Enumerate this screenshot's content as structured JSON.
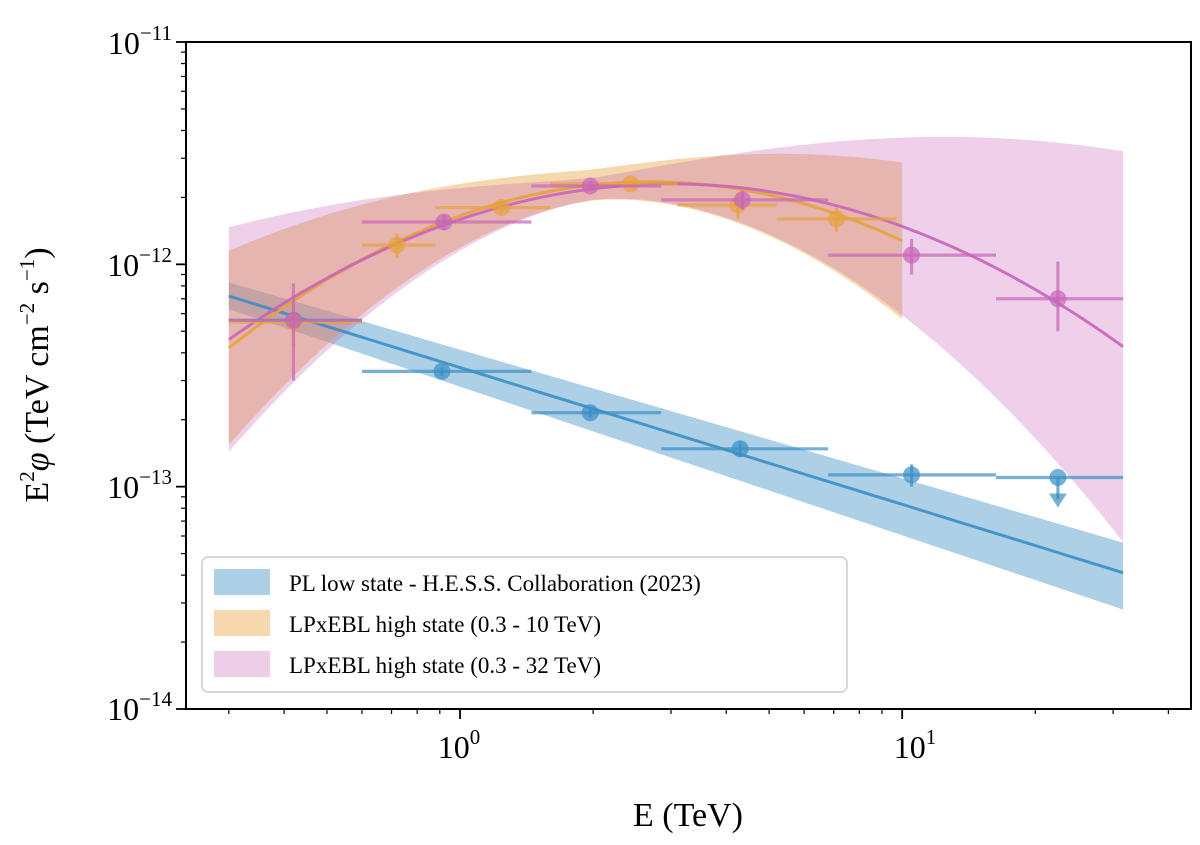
{
  "chart_data": {
    "type": "scatter",
    "xscale": "log",
    "yscale": "log",
    "xlim": [
      0.24,
      45
    ],
    "ylim": [
      1e-14,
      1e-11
    ],
    "xlabel": "E (TeV)",
    "ylabel": {
      "base": "E",
      "sup": "2",
      "phi": "φ",
      "units_open": " (TeV cm",
      "units_sup1": "−2",
      "units_mid": " s",
      "units_sup2": "−1",
      "units_close": ")"
    },
    "x_tick_labels": [
      {
        "value": 1,
        "base": "10",
        "exp": "0"
      },
      {
        "value": 10,
        "base": "10",
        "exp": "1"
      }
    ],
    "y_tick_labels": [
      {
        "value": 1e-14,
        "base": "10",
        "exp": "−14"
      },
      {
        "value": 1e-13,
        "base": "10",
        "exp": "−13"
      },
      {
        "value": 1e-12,
        "base": "10",
        "exp": "−12"
      },
      {
        "value": 1e-11,
        "base": "10",
        "exp": "−11"
      }
    ],
    "legend_position": "lower-left",
    "colors": {
      "pl_low": "#3b8ec4",
      "lp_10": "#e6a23c",
      "lp_32": "#c865b9"
    },
    "series": [
      {
        "name": "PL low state - H.E.S.S. Collaboration (2023)",
        "key": "pl_low",
        "model": {
          "type": "powerlaw",
          "x": [
            0.3,
            31.6
          ],
          "y": [
            7.2e-13,
            4.1e-14
          ],
          "band_low": [
            6.3e-13,
            2.8e-14
          ],
          "band_high": [
            8.3e-13,
            5.6e-14
          ],
          "pivot": 1.5,
          "pivot_frac": 0.06
        },
        "points": [
          {
            "x": 0.42,
            "y": 5.6e-13,
            "xlo": 0.3,
            "xhi": 0.6,
            "ylo": 5.4e-13,
            "yhi": 5.8e-13
          },
          {
            "x": 0.91,
            "y": 3.3e-13,
            "xlo": 0.6,
            "xhi": 1.45,
            "ylo": 3.15e-13,
            "yhi": 3.45e-13
          },
          {
            "x": 1.97,
            "y": 2.15e-13,
            "xlo": 1.45,
            "xhi": 2.85,
            "ylo": 2.05e-13,
            "yhi": 2.25e-13
          },
          {
            "x": 4.3,
            "y": 1.48e-13,
            "xlo": 2.85,
            "xhi": 6.8,
            "ylo": 1.36e-13,
            "yhi": 1.6e-13
          },
          {
            "x": 10.5,
            "y": 1.13e-13,
            "xlo": 6.8,
            "xhi": 16.3,
            "ylo": 1e-13,
            "yhi": 1.26e-13
          },
          {
            "x": 22.5,
            "y": 1.1e-13,
            "xlo": 16.3,
            "xhi": 31.6,
            "upper_limit": true
          }
        ]
      },
      {
        "name": "LPxEBL high state (0.3 - 10 TeV)",
        "key": "lp_10",
        "model": {
          "type": "logparabola",
          "x_range": [
            0.3,
            10
          ],
          "peak_x": 2.7,
          "peak_y": 2.35e-12,
          "curvature": 0.82,
          "band_pivot": 2.0,
          "band_frac": 0.07,
          "band_growth": 0.5
        },
        "points": [
          {
            "x": 0.42,
            "y": 5.5e-13,
            "xlo": 0.3,
            "xhi": 0.6,
            "ylo": 4.3e-13,
            "yhi": 6.8e-13
          },
          {
            "x": 0.72,
            "y": 1.22e-12,
            "xlo": 0.6,
            "xhi": 0.88,
            "ylo": 1.07e-12,
            "yhi": 1.37e-12
          },
          {
            "x": 1.24,
            "y": 1.8e-12,
            "xlo": 0.88,
            "xhi": 1.6,
            "ylo": 1.7e-12,
            "yhi": 1.9e-12
          },
          {
            "x": 2.43,
            "y": 2.3e-12,
            "xlo": 1.6,
            "xhi": 3.1,
            "ylo": 2.22e-12,
            "yhi": 2.38e-12
          },
          {
            "x": 4.25,
            "y": 1.85e-12,
            "xlo": 3.1,
            "xhi": 5.2,
            "ylo": 1.6e-12,
            "yhi": 2.1e-12
          },
          {
            "x": 7.1,
            "y": 1.6e-12,
            "xlo": 5.2,
            "xhi": 9.7,
            "ylo": 1.4e-12,
            "yhi": 1.8e-12
          }
        ]
      },
      {
        "name": "LPxEBL high state (0.3 - 32 TeV)",
        "key": "lp_32",
        "model": {
          "type": "logparabola",
          "x_range": [
            0.3,
            31.6
          ],
          "peak_x": 3.0,
          "peak_y": 2.3e-12,
          "curvature": 0.7,
          "band_pivot": 2.0,
          "band_frac": 0.05,
          "band_growth": 0.62
        },
        "points": [
          {
            "x": 0.42,
            "y": 5.6e-13,
            "xlo": 0.3,
            "xhi": 0.6,
            "ylo": 3e-13,
            "yhi": 8.2e-13
          },
          {
            "x": 0.92,
            "y": 1.55e-12,
            "xlo": 0.6,
            "xhi": 1.45,
            "ylo": 1.43e-12,
            "yhi": 1.67e-12
          },
          {
            "x": 1.97,
            "y": 2.25e-12,
            "xlo": 1.45,
            "xhi": 2.85,
            "ylo": 2.13e-12,
            "yhi": 2.37e-12
          },
          {
            "x": 4.35,
            "y": 1.95e-12,
            "xlo": 2.85,
            "xhi": 6.8,
            "ylo": 1.76e-12,
            "yhi": 2.14e-12
          },
          {
            "x": 10.5,
            "y": 1.1e-12,
            "xlo": 6.8,
            "xhi": 16.3,
            "ylo": 9e-13,
            "yhi": 1.3e-12
          },
          {
            "x": 22.5,
            "y": 7e-13,
            "xlo": 16.3,
            "xhi": 31.6,
            "ylo": 5e-13,
            "yhi": 1.03e-12
          }
        ]
      }
    ]
  }
}
